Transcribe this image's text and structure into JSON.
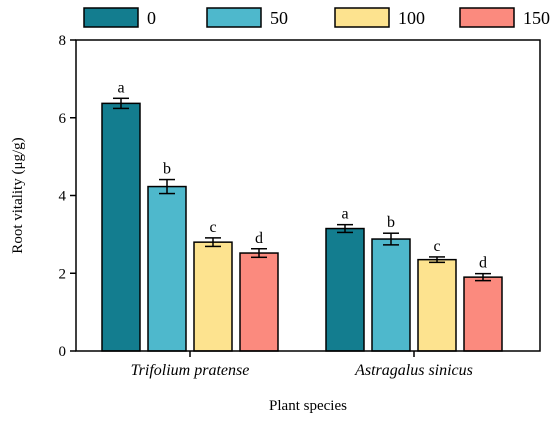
{
  "chart_data": {
    "type": "bar",
    "categories": [
      "Trifolium pratense",
      "Astragalus sinicus"
    ],
    "series": [
      {
        "name": "0",
        "color": "#137D8F",
        "values": [
          6.37,
          3.15
        ],
        "errors": [
          0.13,
          0.1
        ],
        "letters": [
          "a",
          "a"
        ]
      },
      {
        "name": "50",
        "color": "#4EB8CC",
        "values": [
          4.23,
          2.88
        ],
        "errors": [
          0.18,
          0.15
        ],
        "letters": [
          "b",
          "b"
        ]
      },
      {
        "name": "100",
        "color": "#FDE38F",
        "values": [
          2.8,
          2.35
        ],
        "errors": [
          0.11,
          0.07
        ],
        "letters": [
          "c",
          "c"
        ]
      },
      {
        "name": "150",
        "color": "#FB8A7E",
        "values": [
          2.52,
          1.9
        ],
        "errors": [
          0.11,
          0.09
        ],
        "letters": [
          "d",
          "d"
        ]
      }
    ],
    "xlabel": "Plant species",
    "ylabel": "Root vitality (μg/g)",
    "ylim": [
      0,
      8
    ],
    "yticks": [
      0,
      2,
      4,
      6,
      8
    ],
    "legend_position": "top",
    "grid": false
  }
}
